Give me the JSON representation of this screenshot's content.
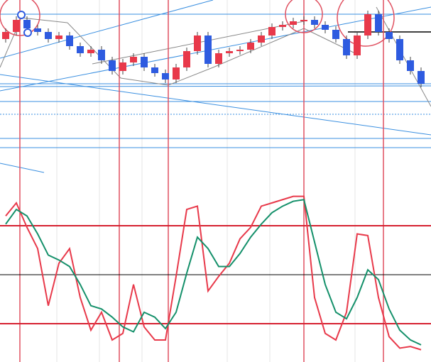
{
  "chart_data": [
    {
      "type": "candlestick",
      "open": [
        75,
        85,
        102,
        90,
        85,
        75,
        80,
        65,
        55,
        60,
        45,
        30,
        42,
        50,
        35,
        27,
        18,
        35,
        58,
        80,
        40,
        55,
        58,
        60,
        70,
        80,
        92,
        95,
        100,
        102,
        95,
        88,
        75,
        52,
        80,
        110,
        85,
        75,
        45,
        30
      ],
      "high": [
        90,
        107,
        107,
        95,
        90,
        85,
        85,
        70,
        65,
        65,
        50,
        47,
        55,
        55,
        40,
        32,
        40,
        63,
        85,
        85,
        60,
        63,
        65,
        75,
        85,
        97,
        100,
        105,
        107,
        107,
        100,
        93,
        80,
        85,
        115,
        115,
        90,
        80,
        50,
        35
      ],
      "low": [
        70,
        80,
        85,
        80,
        70,
        70,
        60,
        50,
        50,
        40,
        25,
        25,
        37,
        30,
        22,
        13,
        13,
        30,
        53,
        35,
        35,
        50,
        53,
        55,
        65,
        75,
        87,
        90,
        95,
        90,
        83,
        70,
        47,
        47,
        75,
        80,
        70,
        40,
        25,
        7
      ],
      "close": [
        85,
        102,
        90,
        85,
        75,
        80,
        65,
        55,
        60,
        45,
        30,
        42,
        50,
        35,
        27,
        18,
        35,
        58,
        80,
        40,
        55,
        58,
        60,
        70,
        80,
        92,
        95,
        100,
        102,
        95,
        88,
        75,
        52,
        80,
        110,
        85,
        75,
        45,
        30,
        12
      ],
      "up_color": "#e8394a",
      "down_color": "#2e5be0",
      "ylim": [
        -120,
        130
      ]
    },
    {
      "type": "line",
      "series": [
        {
          "color": "#e8394a",
          "values": [
            86,
            94,
            79,
            66,
            31,
            57,
            66,
            36,
            16,
            27,
            10,
            14,
            44,
            18,
            10,
            10,
            49,
            90,
            92,
            40,
            49,
            57,
            72,
            79,
            92,
            94,
            96,
            98,
            98,
            36,
            14,
            10,
            27,
            75,
            74,
            36,
            12,
            5,
            6,
            4
          ]
        },
        {
          "color": "#14906a",
          "values": [
            81,
            90,
            86,
            75,
            62,
            59,
            55,
            44,
            31,
            29,
            24,
            18,
            15,
            27,
            24,
            17,
            27,
            51,
            73,
            66,
            55,
            55,
            63,
            73,
            81,
            88,
            92,
            95,
            96,
            70,
            44,
            27,
            23,
            36,
            53,
            47,
            29,
            16,
            10,
            7
          ]
        }
      ],
      "levels": [
        {
          "value": 80,
          "color": "#d62030"
        },
        {
          "value": 50,
          "color": "#000000"
        },
        {
          "value": 20,
          "color": "#d62030"
        }
      ],
      "ylim": [
        -3.5,
        109.6
      ]
    }
  ]
}
